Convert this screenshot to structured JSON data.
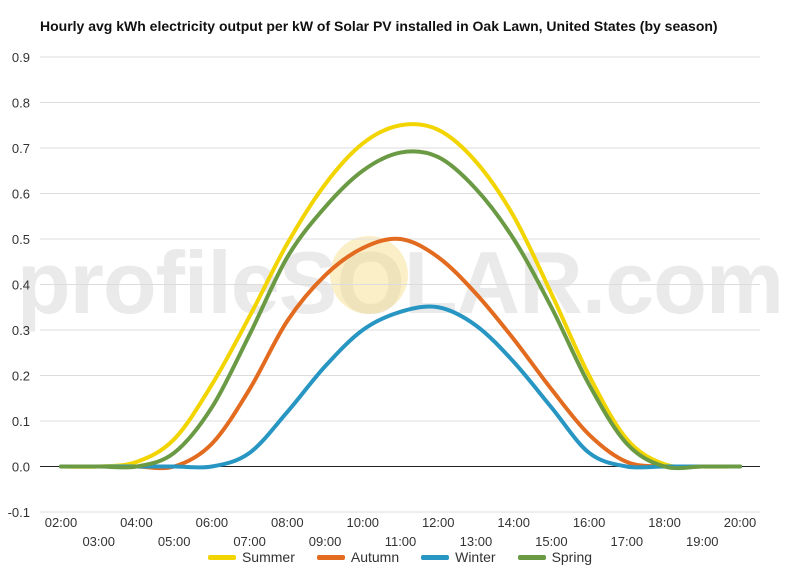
{
  "watermark": "profileSOLAR.com",
  "chart_data": {
    "type": "line",
    "title": "Hourly avg kWh electricity output per kW of Solar PV installed in Oak Lawn, United States (by season)",
    "xlabel": "",
    "ylabel": "",
    "ylim": [
      -0.1,
      0.9
    ],
    "yticks": [
      "-0.1",
      "0.0",
      "0.1",
      "0.2",
      "0.3",
      "0.4",
      "0.5",
      "0.6",
      "0.7",
      "0.8",
      "0.9"
    ],
    "x": [
      "02:00",
      "03:00",
      "04:00",
      "05:00",
      "06:00",
      "07:00",
      "08:00",
      "09:00",
      "10:00",
      "11:00",
      "12:00",
      "13:00",
      "14:00",
      "15:00",
      "16:00",
      "17:00",
      "18:00",
      "19:00",
      "20:00"
    ],
    "grid": true,
    "legend_position": "bottom",
    "series": [
      {
        "name": "Summer",
        "color": "#f2d400",
        "values": [
          0.0,
          0.0,
          0.01,
          0.06,
          0.18,
          0.33,
          0.49,
          0.62,
          0.71,
          0.75,
          0.74,
          0.67,
          0.55,
          0.38,
          0.2,
          0.06,
          0.005,
          0.0,
          0.0
        ]
      },
      {
        "name": "Autumn",
        "color": "#e26b1f",
        "values": [
          0.0,
          0.0,
          0.0,
          0.0,
          0.05,
          0.17,
          0.32,
          0.42,
          0.48,
          0.5,
          0.46,
          0.38,
          0.28,
          0.17,
          0.07,
          0.01,
          0.0,
          0.0,
          0.0
        ]
      },
      {
        "name": "Winter",
        "color": "#2796c3",
        "values": [
          0.0,
          0.0,
          0.0,
          0.0,
          0.0,
          0.03,
          0.12,
          0.22,
          0.3,
          0.34,
          0.35,
          0.31,
          0.23,
          0.13,
          0.03,
          0.0,
          0.0,
          0.0,
          0.0
        ]
      },
      {
        "name": "Spring",
        "color": "#6b9a45",
        "values": [
          0.0,
          0.0,
          0.0,
          0.03,
          0.13,
          0.29,
          0.46,
          0.57,
          0.65,
          0.69,
          0.68,
          0.61,
          0.5,
          0.35,
          0.18,
          0.05,
          0.0,
          0.0,
          0.0
        ]
      }
    ]
  }
}
